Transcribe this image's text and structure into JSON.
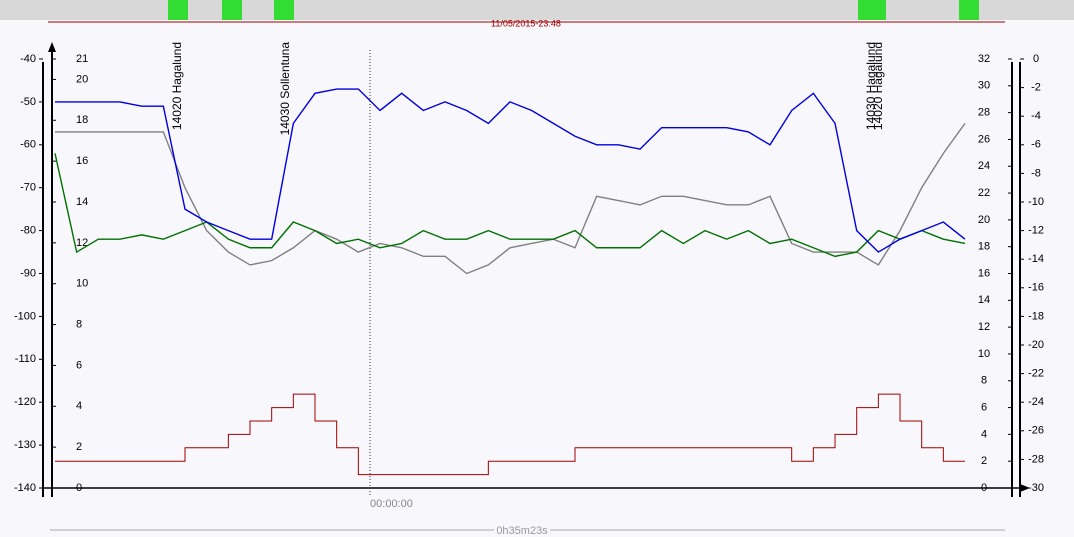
{
  "chart_data": {
    "type": "line",
    "date": "11/05/2015-23:48",
    "duration": "0h35m23s",
    "xlim": [
      0,
      2123
    ],
    "cursor": {
      "x": 727,
      "label": "00:00:00"
    },
    "annotations": [
      {
        "text": "14020 Hagalund",
        "x": 284
      },
      {
        "text": "14030 Sollentuna",
        "x": 533
      },
      {
        "text": "14030 Hagalund",
        "x": 1885
      },
      {
        "text": "14020 Hagalund",
        "x": 1901
      }
    ],
    "axes": [
      {
        "side": "left-outer",
        "lim": [
          -140,
          -40
        ],
        "ticks": [
          -40,
          -50,
          -60,
          -70,
          -80,
          -90,
          -100,
          -110,
          -120,
          -130,
          -140
        ]
      },
      {
        "side": "left-inner",
        "lim": [
          0,
          21
        ],
        "ticks": [
          0,
          2,
          4,
          6,
          8,
          10,
          12,
          14,
          16,
          18,
          20,
          21
        ]
      },
      {
        "side": "right-inner",
        "lim": [
          0,
          32
        ],
        "ticks": [
          0,
          2,
          4,
          6,
          8,
          10,
          12,
          14,
          16,
          18,
          20,
          22,
          24,
          26,
          28,
          30,
          32
        ]
      },
      {
        "side": "right-outer",
        "lim": [
          -30,
          0
        ],
        "ticks": [
          0,
          -2,
          -4,
          -6,
          -8,
          -10,
          -12,
          -14,
          -16,
          -18,
          -20,
          -22,
          -24,
          -26,
          -28,
          -30
        ]
      }
    ],
    "x": [
      0,
      50,
      100,
      150,
      200,
      250,
      300,
      350,
      400,
      450,
      500,
      550,
      600,
      650,
      700,
      750,
      800,
      850,
      900,
      950,
      1000,
      1050,
      1100,
      1150,
      1200,
      1250,
      1300,
      1350,
      1400,
      1450,
      1500,
      1550,
      1600,
      1650,
      1700,
      1750,
      1800,
      1850,
      1900,
      1950,
      2000,
      2050,
      2100
    ],
    "series": [
      {
        "color": "#808080",
        "axis": 0,
        "values": [
          -57,
          -57,
          -57,
          -57,
          -57,
          -57,
          -70,
          -80,
          -85,
          -88,
          -87,
          -84,
          -80,
          -82,
          -85,
          -83,
          -84,
          -86,
          -86,
          -90,
          -88,
          -84,
          -83,
          -82,
          -84,
          -72,
          -73,
          -74,
          -72,
          -72,
          -73,
          -74,
          -74,
          -72,
          -83,
          -85,
          -85,
          -85,
          -88,
          -80,
          -70,
          -62,
          -55
        ]
      },
      {
        "color": "#007000",
        "axis": 0,
        "values": [
          -62,
          -85,
          -82,
          -82,
          -81,
          -82,
          -80,
          -78,
          -82,
          -84,
          -84,
          -78,
          -80,
          -83,
          -82,
          -84,
          -83,
          -80,
          -82,
          -82,
          -80,
          -82,
          -82,
          -82,
          -80,
          -84,
          -84,
          -84,
          -80,
          -83,
          -80,
          -82,
          -80,
          -83,
          -82,
          -84,
          -86,
          -85,
          -80,
          -82,
          -80,
          -82,
          -83
        ]
      },
      {
        "color": "#0000e0",
        "axis": 0,
        "values": [
          -50,
          -50,
          -50,
          -50,
          -51,
          -51,
          -75,
          -78,
          -80,
          -82,
          -82,
          -55,
          -48,
          -47,
          -47,
          -52,
          -48,
          -52,
          -50,
          -52,
          -55,
          -50,
          -52,
          -55,
          -58,
          -60,
          -60,
          -61,
          -56,
          -56,
          -56,
          -56,
          -57,
          -60,
          -52,
          -48,
          -55,
          -80,
          -85,
          -82,
          -80,
          -78,
          -82
        ]
      },
      {
        "color": "#a00000",
        "axis": 2,
        "values": [
          2,
          2,
          2,
          2,
          2,
          2,
          3,
          3,
          4,
          5,
          6,
          7,
          5,
          3,
          1,
          1,
          1,
          1,
          1,
          1,
          2,
          2,
          2,
          2,
          3,
          3,
          3,
          3,
          3,
          3,
          3,
          3,
          3,
          3,
          2,
          3,
          4,
          6,
          7,
          5,
          3,
          2,
          2
        ]
      }
    ]
  }
}
